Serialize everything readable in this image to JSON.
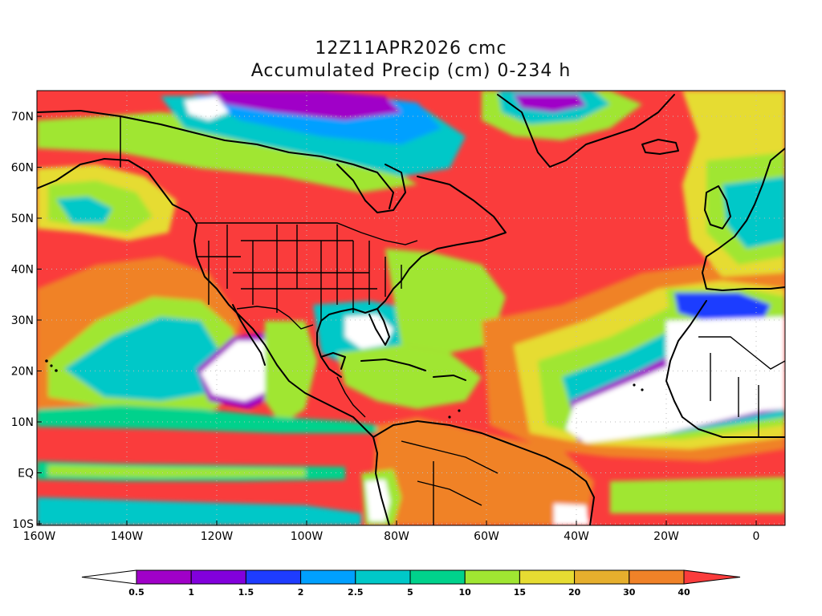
{
  "title": {
    "line1": "12Z11APR2026 cmc",
    "line2": "Accumulated Precip (cm) 0-234 h"
  },
  "axes": {
    "x_ticks": [
      "160W",
      "140W",
      "120W",
      "100W",
      "80W",
      "60W",
      "40W",
      "20W",
      "0"
    ],
    "y_ticks": [
      "70N",
      "60N",
      "50N",
      "40N",
      "30N",
      "20N",
      "10N",
      "EQ",
      "10S"
    ]
  },
  "colorbar": {
    "labels": [
      "0.5",
      "1",
      "1.5",
      "2",
      "2.5",
      "5",
      "10",
      "15",
      "20",
      "30",
      "40"
    ],
    "colors": [
      "#a000c8",
      "#8200dc",
      "#1e3cff",
      "#00a0ff",
      "#00c8c8",
      "#00d28c",
      "#a0e632",
      "#e6dc32",
      "#e6af2d",
      "#f08228",
      "#fa3c3c"
    ],
    "low_color": "#ffffff",
    "high_color": "#fa3c3c"
  },
  "colors": {
    "map_background": "#fa3c3c",
    "no_precip": "#ffffff",
    "coastline": "#000000",
    "grid": "#bdbdbd"
  }
}
